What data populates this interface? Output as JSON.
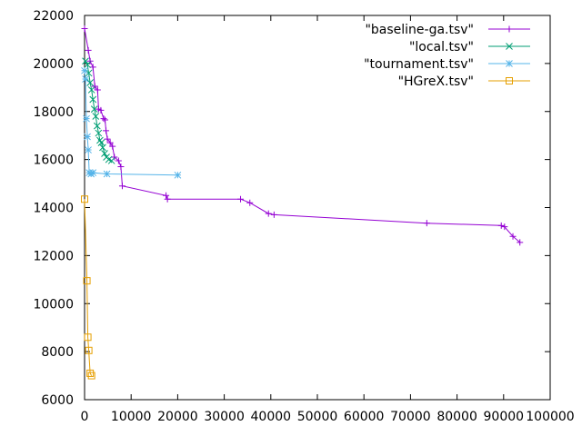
{
  "chart_data": {
    "type": "line",
    "title": "",
    "xlabel": "",
    "ylabel": "",
    "xlim": [
      0,
      100000
    ],
    "ylim": [
      6000,
      22000
    ],
    "x_ticks": [
      0,
      10000,
      20000,
      30000,
      40000,
      50000,
      60000,
      70000,
      80000,
      90000,
      100000
    ],
    "x_tick_labels": [
      "0",
      "10000",
      "20000",
      "30000",
      "40000",
      "50000",
      "60000",
      "70000",
      "80000",
      "90000",
      "100000"
    ],
    "y_ticks": [
      6000,
      8000,
      10000,
      12000,
      14000,
      16000,
      18000,
      20000,
      22000
    ],
    "y_tick_labels": [
      "6000",
      "8000",
      "10000",
      "12000",
      "14000",
      "16000",
      "18000",
      "20000",
      "22000"
    ],
    "grid": false,
    "legend_placement": "top-right",
    "series": [
      {
        "name": "\"baseline-ga.tsv\"",
        "color": "#9400d3",
        "marker": "plus",
        "points": [
          [
            0,
            21450
          ],
          [
            800,
            20550
          ],
          [
            1200,
            20100
          ],
          [
            1800,
            19850
          ],
          [
            2200,
            19050
          ],
          [
            2800,
            18900
          ],
          [
            3000,
            18100
          ],
          [
            3500,
            18050
          ],
          [
            4100,
            17700
          ],
          [
            4400,
            17650
          ],
          [
            4600,
            17200
          ],
          [
            4900,
            16850
          ],
          [
            5500,
            16700
          ],
          [
            6000,
            16550
          ],
          [
            6400,
            16100
          ],
          [
            7300,
            15950
          ],
          [
            7800,
            15700
          ],
          [
            8100,
            14900
          ],
          [
            17500,
            14500
          ],
          [
            17800,
            14350
          ],
          [
            33500,
            14350
          ],
          [
            35500,
            14200
          ],
          [
            39500,
            13750
          ],
          [
            40700,
            13700
          ],
          [
            73500,
            13350
          ],
          [
            89500,
            13250
          ],
          [
            90200,
            13200
          ],
          [
            92000,
            12800
          ],
          [
            93500,
            12550
          ]
        ]
      },
      {
        "name": "\"local.tsv\"",
        "color": "#009e73",
        "marker": "x",
        "points": [
          [
            200,
            20100
          ],
          [
            600,
            19950
          ],
          [
            900,
            19600
          ],
          [
            1200,
            19200
          ],
          [
            1500,
            18900
          ],
          [
            1800,
            18500
          ],
          [
            2100,
            18100
          ],
          [
            2400,
            17800
          ],
          [
            2700,
            17400
          ],
          [
            3000,
            17100
          ],
          [
            3300,
            16800
          ],
          [
            3600,
            16700
          ],
          [
            3900,
            16500
          ],
          [
            4300,
            16250
          ],
          [
            4700,
            16100
          ],
          [
            5200,
            16000
          ],
          [
            5800,
            15950
          ]
        ]
      },
      {
        "name": "\"tournament.tsv\"",
        "color": "#56b4e9",
        "marker": "star",
        "points": [
          [
            0,
            19700
          ],
          [
            200,
            19350
          ],
          [
            400,
            17700
          ],
          [
            600,
            16950
          ],
          [
            800,
            16400
          ],
          [
            1000,
            15450
          ],
          [
            1400,
            15400
          ],
          [
            1800,
            15450
          ],
          [
            4800,
            15400
          ],
          [
            20000,
            15350
          ]
        ]
      },
      {
        "name": "\"HGreX.tsv\"",
        "color": "#e69f00",
        "marker": "square",
        "points": [
          [
            0,
            14350
          ],
          [
            500,
            10950
          ],
          [
            700,
            8600
          ],
          [
            900,
            8050
          ],
          [
            1200,
            7100
          ],
          [
            1500,
            7000
          ]
        ]
      }
    ]
  }
}
